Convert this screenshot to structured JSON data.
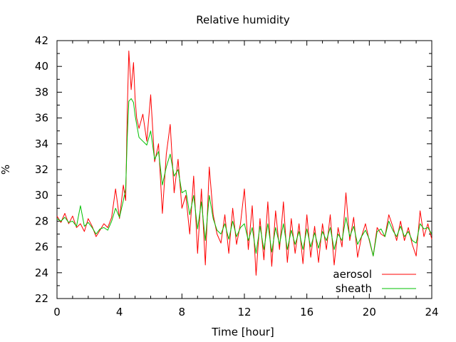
{
  "chart_data": {
    "type": "line",
    "title": "Relative humidity",
    "xlabel": "Time [hour]",
    "ylabel": "%",
    "xlim": [
      0,
      24
    ],
    "ylim": [
      22,
      42
    ],
    "xticks": [
      0,
      4,
      8,
      12,
      16,
      20,
      24
    ],
    "yticks": [
      22,
      24,
      26,
      28,
      30,
      32,
      34,
      36,
      38,
      40,
      42
    ],
    "x_minor_step": 1,
    "y_minor_step": 1,
    "grid": false,
    "legend_position": "bottom-right",
    "series": [
      {
        "name": "aerosol",
        "color": "#ff0000",
        "x": [
          0,
          0.25,
          0.5,
          0.75,
          1,
          1.25,
          1.5,
          1.75,
          2,
          2.25,
          2.5,
          2.75,
          3,
          3.25,
          3.5,
          3.75,
          4,
          4.25,
          4.4,
          4.5,
          4.6,
          4.75,
          4.9,
          5,
          5.1,
          5.25,
          5.5,
          5.75,
          6,
          6.25,
          6.5,
          6.75,
          7,
          7.25,
          7.5,
          7.75,
          8,
          8.25,
          8.5,
          8.75,
          9,
          9.25,
          9.5,
          9.75,
          10,
          10.25,
          10.5,
          10.75,
          11,
          11.25,
          11.5,
          11.75,
          12,
          12.25,
          12.5,
          12.75,
          13,
          13.25,
          13.5,
          13.75,
          14,
          14.25,
          14.5,
          14.75,
          15,
          15.25,
          15.5,
          15.75,
          16,
          16.25,
          16.5,
          16.75,
          17,
          17.25,
          17.5,
          17.75,
          18,
          18.25,
          18.5,
          18.75,
          19,
          19.25,
          19.5,
          19.75,
          20,
          20.25,
          20.5,
          20.75,
          21,
          21.25,
          21.5,
          21.75,
          22,
          22.25,
          22.5,
          22.75,
          23,
          23.25,
          23.5,
          23.75,
          24
        ],
        "values": [
          28.4,
          27.9,
          28.6,
          27.8,
          28.4,
          27.5,
          27.8,
          27.2,
          28.2,
          27.6,
          26.8,
          27.3,
          27.8,
          27.5,
          28.3,
          30.5,
          28.2,
          30.8,
          29.6,
          36.5,
          41.2,
          38.2,
          40.3,
          37.5,
          36.0,
          35.2,
          36.3,
          34.2,
          37.8,
          32.6,
          34.0,
          28.6,
          33.2,
          35.5,
          30.2,
          32.8,
          29.0,
          30.0,
          27.0,
          31.5,
          25.5,
          30.5,
          24.6,
          32.2,
          28.5,
          27.0,
          26.3,
          28.5,
          25.5,
          29.0,
          26.2,
          27.8,
          30.5,
          25.8,
          29.2,
          23.8,
          28.2,
          25.0,
          29.5,
          24.5,
          28.8,
          25.8,
          29.5,
          24.8,
          28.2,
          25.5,
          27.8,
          24.7,
          28.5,
          25.2,
          27.6,
          24.8,
          27.8,
          25.8,
          28.5,
          24.6,
          27.5,
          26.0,
          30.2,
          26.5,
          28.3,
          25.2,
          26.8,
          27.8,
          26.5,
          25.3,
          27.5,
          27.0,
          26.8,
          28.5,
          27.6,
          26.5,
          28.0,
          26.5,
          27.5,
          26.2,
          25.3,
          28.8,
          26.8,
          27.8,
          26.6
        ],
        "legend_label": "aerosol"
      },
      {
        "name": "sheath",
        "color": "#00c000",
        "x": [
          0,
          0.25,
          0.5,
          0.75,
          1,
          1.25,
          1.5,
          1.75,
          2,
          2.25,
          2.5,
          2.75,
          3,
          3.25,
          3.5,
          3.75,
          4,
          4.25,
          4.4,
          4.5,
          4.6,
          4.75,
          4.9,
          5,
          5.1,
          5.25,
          5.5,
          5.75,
          6,
          6.25,
          6.5,
          6.75,
          7,
          7.25,
          7.5,
          7.75,
          8,
          8.25,
          8.5,
          8.75,
          9,
          9.25,
          9.5,
          9.75,
          10,
          10.25,
          10.5,
          10.75,
          11,
          11.25,
          11.5,
          11.75,
          12,
          12.25,
          12.5,
          12.75,
          13,
          13.25,
          13.5,
          13.75,
          14,
          14.25,
          14.5,
          14.75,
          15,
          15.25,
          15.5,
          15.75,
          16,
          16.25,
          16.5,
          16.75,
          17,
          17.25,
          17.5,
          17.75,
          18,
          18.25,
          18.5,
          18.75,
          19,
          19.25,
          19.5,
          19.75,
          20,
          20.25,
          20.5,
          20.75,
          21,
          21.25,
          21.5,
          21.75,
          22,
          22.25,
          22.5,
          22.75,
          23,
          23.25,
          23.5,
          23.75,
          24
        ],
        "values": [
          28.2,
          28.0,
          28.3,
          27.9,
          28.0,
          27.6,
          29.2,
          27.6,
          27.9,
          27.5,
          27.0,
          27.4,
          27.5,
          27.3,
          28.0,
          29.0,
          28.3,
          29.6,
          30.5,
          34.5,
          37.3,
          37.5,
          37.2,
          36.2,
          35.5,
          34.5,
          34.2,
          33.9,
          35.0,
          32.8,
          33.4,
          30.8,
          32.2,
          33.2,
          31.5,
          32.0,
          30.2,
          30.4,
          28.5,
          30.0,
          27.4,
          29.5,
          26.5,
          30.0,
          28.2,
          27.3,
          27.0,
          27.8,
          26.6,
          28.0,
          26.8,
          27.5,
          27.8,
          26.5,
          27.5,
          25.5,
          27.6,
          25.8,
          27.8,
          25.6,
          27.5,
          26.2,
          27.8,
          25.8,
          27.3,
          26.2,
          27.2,
          25.8,
          27.4,
          26.0,
          27.1,
          25.9,
          27.2,
          26.5,
          27.5,
          25.8,
          27.0,
          26.5,
          28.3,
          26.8,
          27.6,
          26.2,
          26.8,
          27.3,
          26.6,
          25.3,
          27.2,
          27.4,
          26.8,
          28.0,
          27.3,
          26.8,
          27.6,
          26.8,
          27.2,
          26.5,
          26.3,
          27.8,
          27.4,
          27.5,
          27.0
        ],
        "legend_label": "sheath"
      }
    ]
  }
}
